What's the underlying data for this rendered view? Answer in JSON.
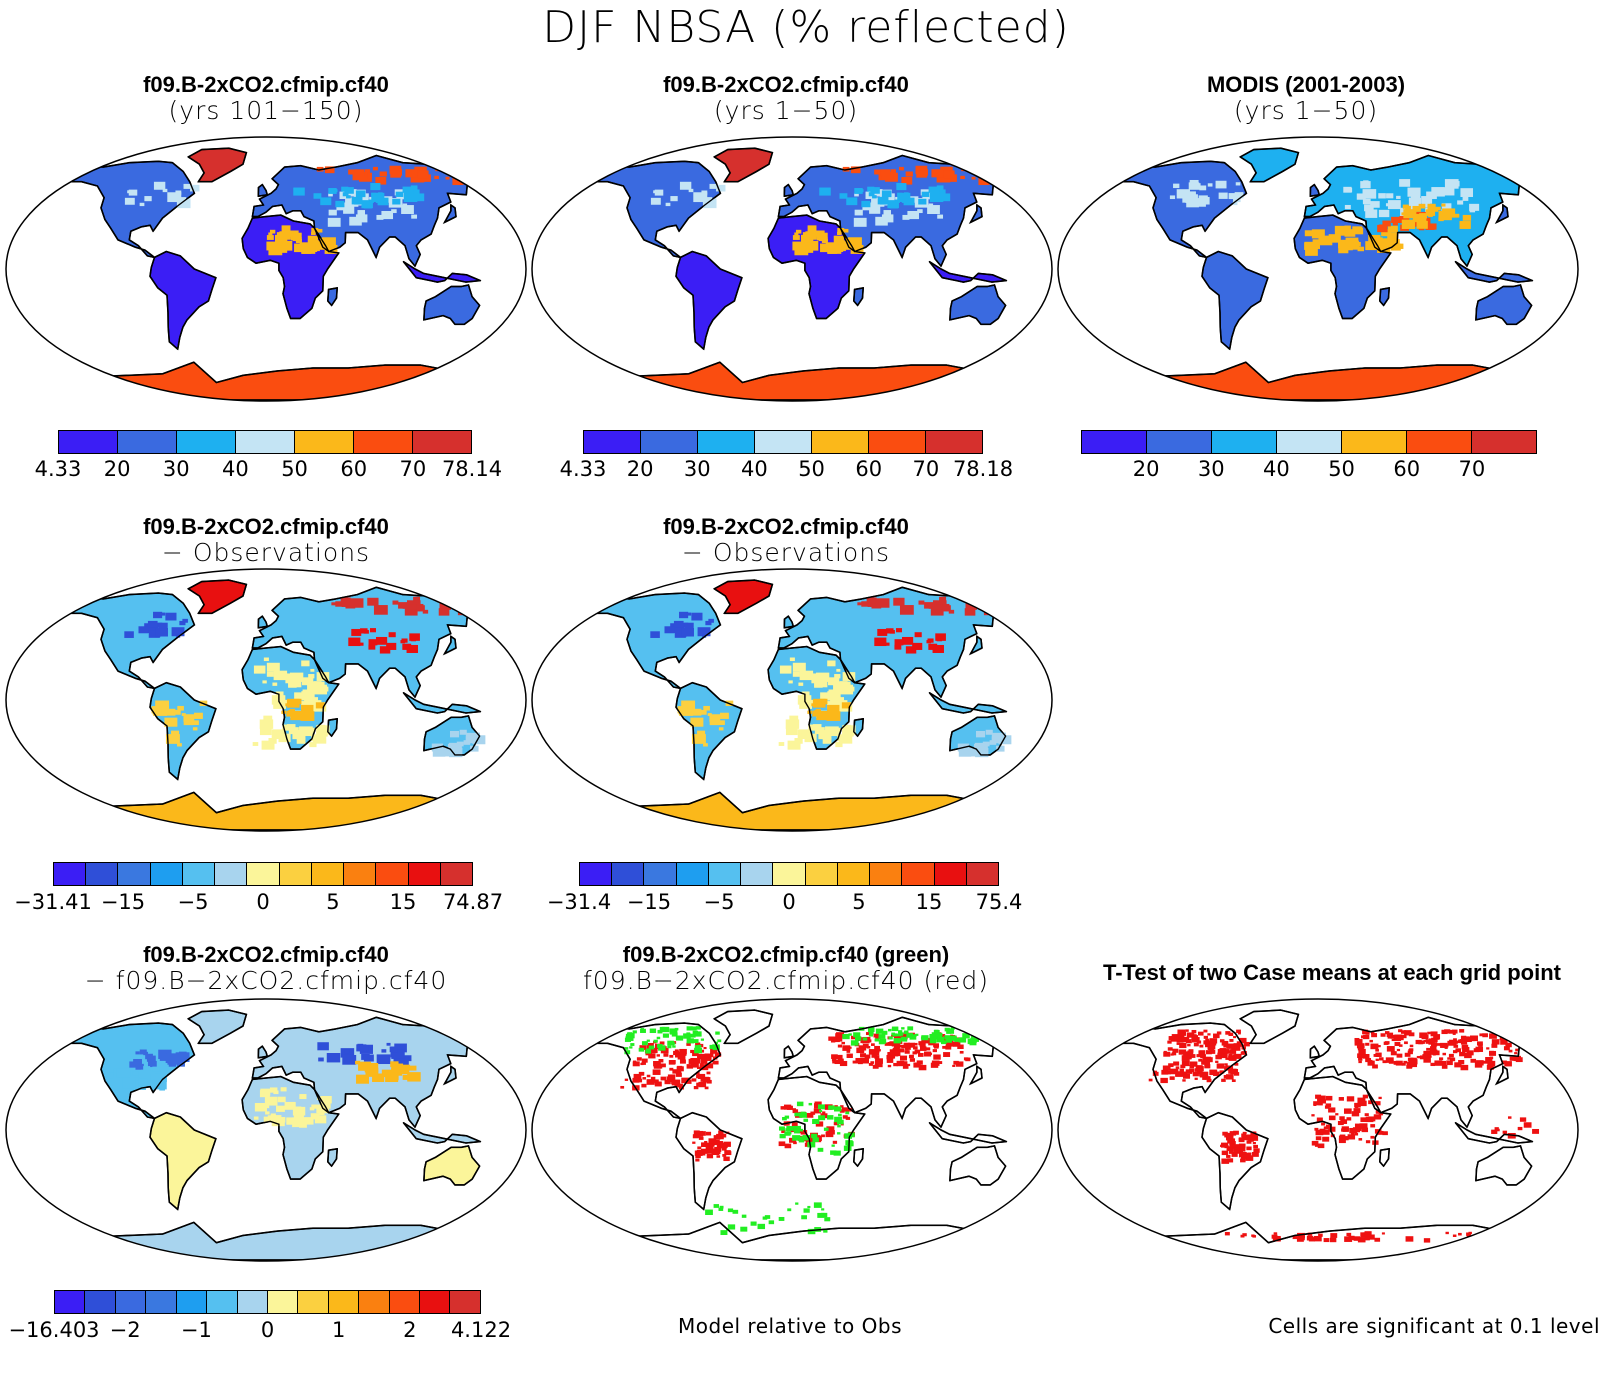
{
  "title": "DJF NBSA (% reflected)",
  "colors": {
    "abs_levels": [
      "#3b1ef5",
      "#3a6ae0",
      "#1eb0f0",
      "#c4e4f4",
      "#fbb81a",
      "#fa4d10",
      "#d6302d"
    ],
    "diff_levels": [
      "#3b1ef5",
      "#2f4fd8",
      "#3a78e0",
      "#1e9ef0",
      "#55c0f0",
      "#a8d4ee",
      "#fbf59a",
      "#fbd040",
      "#fbb81a",
      "#fa8010",
      "#fa4d10",
      "#e81010",
      "#d6302d"
    ],
    "case_levels": [
      "#3b1ef5",
      "#2f4fd8",
      "#3a6ae0",
      "#3a78e0",
      "#1e9ef0",
      "#55c0f0",
      "#a8d4ee",
      "#fbf59a",
      "#fbd040",
      "#fbb81a",
      "#fa8010",
      "#fa4d10",
      "#e81010",
      "#d6302d"
    ],
    "sig_green": "#22ee22",
    "sig_red": "#ee1111"
  },
  "panels": [
    {
      "title1": "f09.B-2xCO2.cfmip.cf40",
      "title2": "(yrs 101−150)",
      "ticks": [
        "4.33",
        "20",
        "30",
        "40",
        "50",
        "60",
        "70",
        "78.14"
      ]
    },
    {
      "title1": "f09.B-2xCO2.cfmip.cf40",
      "title2": "(yrs 1−50)",
      "ticks": [
        "4.33",
        "20",
        "30",
        "40",
        "50",
        "60",
        "70",
        "78.18"
      ]
    },
    {
      "title1": "MODIS (2001-2003)",
      "title2": "(yrs 1−50)",
      "ticks": [
        "20",
        "30",
        "40",
        "50",
        "60",
        "70"
      ]
    },
    {
      "title1": "f09.B-2xCO2.cfmip.cf40",
      "title2": "− Observations",
      "ticks": [
        "−31.41",
        "−15",
        "−5",
        "0",
        "5",
        "15",
        "74.87"
      ]
    },
    {
      "title1": "f09.B-2xCO2.cfmip.cf40",
      "title2": "− Observations",
      "ticks": [
        "−31.4",
        "−15",
        "−5",
        "0",
        "5",
        "15",
        "75.4"
      ]
    },
    {
      "title1": "f09.B-2xCO2.cfmip.cf40",
      "title2": "− f09.B−2xCO2.cfmip.cf40",
      "ticks": [
        "−16.403",
        "−2",
        "−1",
        "0",
        "1",
        "2",
        "4.122"
      ]
    },
    {
      "title1": "f09.B-2xCO2.cfmip.cf40 (green)",
      "title2": "f09.B−2xCO2.cfmip.cf40 (red)"
    },
    {
      "title1": "T-Test of two Case means at each grid point"
    }
  ],
  "notes": {
    "model_relative": "Model relative to Obs",
    "significance": "Cells are significant at 0.1 level"
  }
}
